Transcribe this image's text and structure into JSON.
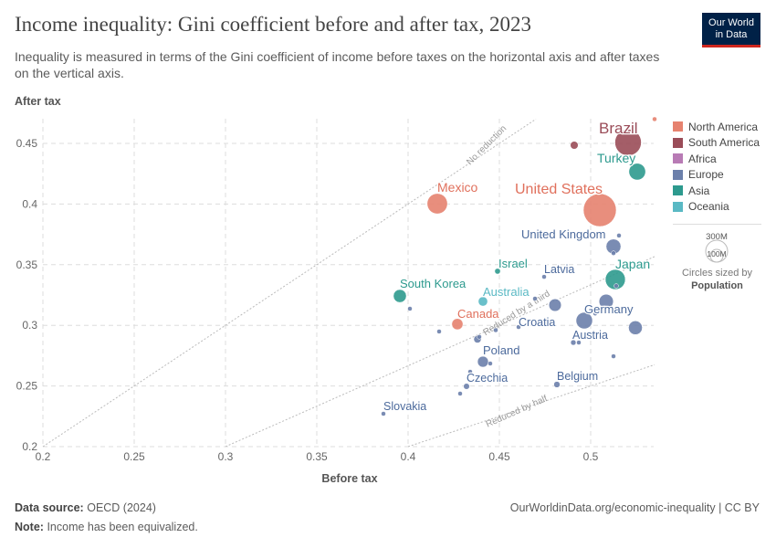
{
  "header": {
    "title": "Income inequality: Gini coefficient before and after tax, 2023",
    "subtitle": "Inequality is measured in terms of the Gini coefficient of income before taxes on the horizontal axis and after taxes on the vertical axis.",
    "logo": "Our World in Data"
  },
  "footer": {
    "source_label": "Data source:",
    "source": "OECD (2024)",
    "url": "OurWorldinData.org/economic-inequality | CC BY",
    "note_label": "Note:",
    "note": "Income has been equivalized."
  },
  "legend": {
    "items": [
      {
        "name": "North America",
        "color": "#e6826f"
      },
      {
        "name": "South America",
        "color": "#9a4c58"
      },
      {
        "name": "Africa",
        "color": "#b87bb5"
      },
      {
        "name": "Europe",
        "color": "#6c80ab"
      },
      {
        "name": "Asia",
        "color": "#2d9a8e"
      },
      {
        "name": "Oceania",
        "color": "#5ab9c4"
      }
    ],
    "size_big": "300M",
    "size_small": "100M",
    "size_caption": "Circles sized by",
    "size_var": "Population"
  },
  "chart_data": {
    "type": "scatter",
    "title": "Income inequality: Gini coefficient before and after tax, 2023",
    "xlabel": "Before tax",
    "ylabel": "After tax",
    "xlim": [
      0.195,
      0.535
    ],
    "ylim": [
      0.2,
      0.472
    ],
    "xticks": [
      "0.2",
      "0.25",
      "0.3",
      "0.35",
      "0.4",
      "0.45",
      "0.5"
    ],
    "yticks": [
      "0.2",
      "0.25",
      "0.3",
      "0.35",
      "0.4",
      "0.45"
    ],
    "grid": true,
    "reference_lines": [
      {
        "label": "No reduction",
        "slope": 1
      },
      {
        "label": "Reduced by a third",
        "slope": 0.6667
      },
      {
        "label": "Reduced by half",
        "slope": 0.5
      }
    ],
    "points": [
      {
        "label": "Brazil",
        "region": "South America",
        "x": 0.5205,
        "y": 0.4508,
        "pop": 216
      },
      {
        "label": "",
        "region": "South America",
        "x": 0.491,
        "y": 0.4485,
        "pop": 19
      },
      {
        "label": "",
        "region": "North America",
        "x": 0.535,
        "y": 0.47,
        "pop": 5
      },
      {
        "label": "Turkey",
        "region": "Asia",
        "x": 0.5255,
        "y": 0.4267,
        "pop": 86
      },
      {
        "label": "United States",
        "region": "North America",
        "x": 0.505,
        "y": 0.395,
        "pop": 335
      },
      {
        "label": "Mexico",
        "region": "North America",
        "x": 0.416,
        "y": 0.4003,
        "pop": 128
      },
      {
        "label": "",
        "region": "Europe",
        "x": 0.5155,
        "y": 0.374,
        "pop": 3
      },
      {
        "label": "United Kingdom",
        "region": "Europe",
        "x": 0.5125,
        "y": 0.365,
        "pop": 68
      },
      {
        "label": "",
        "region": "Europe",
        "x": 0.5125,
        "y": 0.3595,
        "pop": 3
      },
      {
        "label": "Japan",
        "region": "Asia",
        "x": 0.5135,
        "y": 0.3378,
        "pop": 124
      },
      {
        "label": "",
        "region": "Europe",
        "x": 0.514,
        "y": 0.3325,
        "pop": 6
      },
      {
        "label": "Israel",
        "region": "Asia",
        "x": 0.449,
        "y": 0.3446,
        "pop": 10
      },
      {
        "label": "Latvia",
        "region": "Europe",
        "x": 0.4745,
        "y": 0.34,
        "pop": 2
      },
      {
        "label": "South Korea",
        "region": "Asia",
        "x": 0.3955,
        "y": 0.3242,
        "pop": 52
      },
      {
        "label": "",
        "region": "Europe",
        "x": 0.401,
        "y": 0.3137,
        "pop": 5
      },
      {
        "label": "Australia",
        "region": "Oceania",
        "x": 0.441,
        "y": 0.3197,
        "pop": 27
      },
      {
        "label": "",
        "region": "Europe",
        "x": 0.4695,
        "y": 0.322,
        "pop": 2
      },
      {
        "label": "",
        "region": "Europe",
        "x": 0.4805,
        "y": 0.3167,
        "pop": 48
      },
      {
        "label": "",
        "region": "Europe",
        "x": 0.5085,
        "y": 0.3197,
        "pop": 64
      },
      {
        "label": "",
        "region": "Europe",
        "x": 0.5025,
        "y": 0.3098,
        "pop": 6
      },
      {
        "label": "Germany",
        "region": "Europe",
        "x": 0.4965,
        "y": 0.3039,
        "pop": 84
      },
      {
        "label": "Canada",
        "region": "North America",
        "x": 0.427,
        "y": 0.301,
        "pop": 39
      },
      {
        "label": "Croatia",
        "region": "Europe",
        "x": 0.4605,
        "y": 0.2986,
        "pop": 4
      },
      {
        "label": "",
        "region": "Europe",
        "x": 0.448,
        "y": 0.296,
        "pop": 2
      },
      {
        "label": "",
        "region": "Europe",
        "x": 0.5245,
        "y": 0.298,
        "pop": 59
      },
      {
        "label": "",
        "region": "Europe",
        "x": 0.417,
        "y": 0.2949,
        "pop": 6
      },
      {
        "label": "",
        "region": "Europe",
        "x": 0.438,
        "y": 0.2885,
        "pop": 17
      },
      {
        "label": "",
        "region": "Europe",
        "x": 0.439,
        "y": 0.2905,
        "pop": 6
      },
      {
        "label": "Austria",
        "region": "Europe",
        "x": 0.4905,
        "y": 0.2858,
        "pop": 9
      },
      {
        "label": "",
        "region": "Europe",
        "x": 0.4935,
        "y": 0.2858,
        "pop": 6
      },
      {
        "label": "",
        "region": "Europe",
        "x": 0.5125,
        "y": 0.2745,
        "pop": 5
      },
      {
        "label": "Poland",
        "region": "Europe",
        "x": 0.441,
        "y": 0.27,
        "pop": 37
      },
      {
        "label": "",
        "region": "Europe",
        "x": 0.445,
        "y": 0.2685,
        "pop": 3
      },
      {
        "label": "",
        "region": "Europe",
        "x": 0.434,
        "y": 0.2617,
        "pop": 4
      },
      {
        "label": "Czechia",
        "region": "Europe",
        "x": 0.432,
        "y": 0.2497,
        "pop": 11
      },
      {
        "label": "",
        "region": "Europe",
        "x": 0.4285,
        "y": 0.2437,
        "pop": 3
      },
      {
        "label": "Belgium",
        "region": "Europe",
        "x": 0.4815,
        "y": 0.2512,
        "pop": 12
      },
      {
        "label": "Slovakia",
        "region": "Europe",
        "x": 0.3865,
        "y": 0.2271,
        "pop": 5
      }
    ]
  }
}
